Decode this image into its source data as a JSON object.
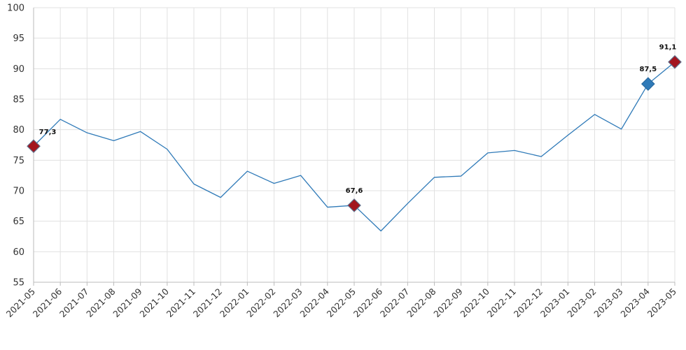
{
  "chart_data": {
    "type": "line",
    "title": "",
    "xlabel": "",
    "ylabel": "",
    "ylim": [
      55,
      100
    ],
    "y_ticks": [
      55,
      60,
      65,
      70,
      75,
      80,
      85,
      90,
      95,
      100
    ],
    "grid": true,
    "line_color": "#2f7ab8",
    "categories": [
      "2021-05",
      "2021-06",
      "2021-07",
      "2021-08",
      "2021-09",
      "2021-10",
      "2021-11",
      "2021-12",
      "2022-01",
      "2022-02",
      "2022-03",
      "2022-04",
      "2022-05",
      "2022-06",
      "2022-07",
      "2022-08",
      "2022-09",
      "2022-10",
      "2022-11",
      "2022-12",
      "2023-01",
      "2023-02",
      "2023-03",
      "2023-04",
      "2023-05"
    ],
    "series": [
      {
        "values": [
          77.3,
          81.7,
          79.5,
          78.2,
          79.7,
          76.8,
          71.1,
          68.9,
          73.2,
          71.2,
          72.5,
          67.3,
          67.6,
          63.4,
          67.9,
          72.2,
          72.4,
          76.2,
          76.6,
          75.6,
          79.1,
          82.5,
          80.1,
          87.5,
          91.1
        ]
      }
    ],
    "highlighted_points": [
      {
        "category": "2021-05",
        "value": 77.3,
        "label": "77,3",
        "marker": "diamond",
        "color": "#a3141e"
      },
      {
        "category": "2022-05",
        "value": 67.6,
        "label": "67,6",
        "marker": "diamond",
        "color": "#a3141e"
      },
      {
        "category": "2023-04",
        "value": 87.5,
        "label": "87,5",
        "marker": "diamond",
        "color": "#2f7ab8"
      },
      {
        "category": "2023-05",
        "value": 91.1,
        "label": "91,1",
        "marker": "diamond",
        "color": "#a3141e"
      }
    ]
  }
}
